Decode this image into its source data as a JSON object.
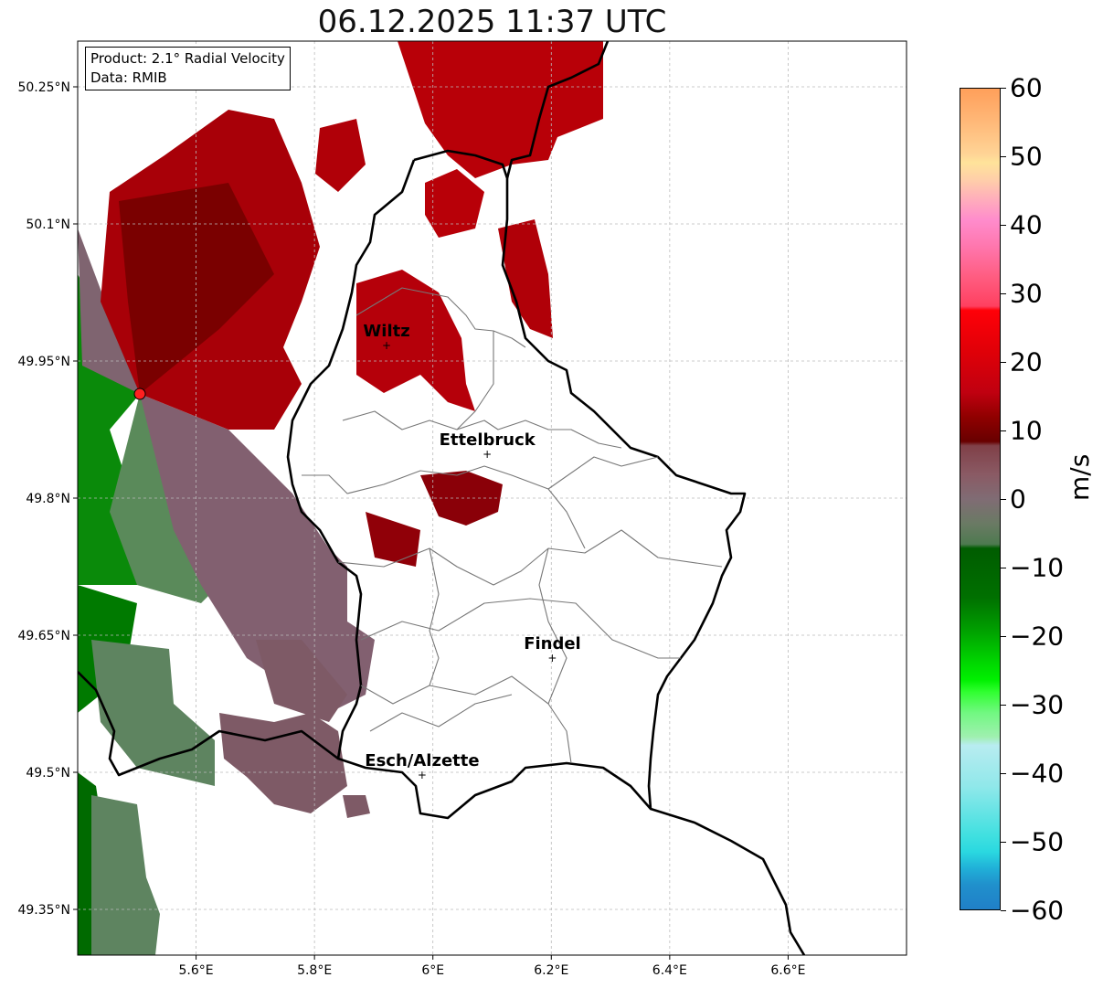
{
  "title": "06.12.2025 11:37 UTC",
  "legend": {
    "product": "Product: 2.1° Radial Velocity",
    "data": "Data: RMIB"
  },
  "map": {
    "lon_range": [
      5.4,
      6.8
    ],
    "lat_range": [
      49.3,
      50.3
    ],
    "lon_ticks": [
      {
        "v": 5.6,
        "label": "5.6°E"
      },
      {
        "v": 5.8,
        "label": "5.8°E"
      },
      {
        "v": 6.0,
        "label": "6°E"
      },
      {
        "v": 6.2,
        "label": "6.2°E"
      },
      {
        "v": 6.4,
        "label": "6.4°E"
      },
      {
        "v": 6.6,
        "label": "6.6°E"
      }
    ],
    "lat_ticks": [
      {
        "v": 50.25,
        "label": "50.25°N"
      },
      {
        "v": 50.1,
        "label": "50.1°N"
      },
      {
        "v": 49.95,
        "label": "49.95°N"
      },
      {
        "v": 49.8,
        "label": "49.8°N"
      },
      {
        "v": 49.65,
        "label": "49.65°N"
      },
      {
        "v": 49.5,
        "label": "49.5°N"
      },
      {
        "v": 49.35,
        "label": "49.35°N"
      }
    ],
    "cities": [
      {
        "name": "Wiltz",
        "lon": 5.928,
        "lat": 49.967
      },
      {
        "name": "Ettelbruck",
        "lon": 6.098,
        "lat": 49.848
      },
      {
        "name": "Findel",
        "lon": 6.208,
        "lat": 49.625
      },
      {
        "name": "Esch/Alzette",
        "lon": 5.988,
        "lat": 49.497
      }
    ],
    "radar_site": {
      "lon": 5.505,
      "lat": 49.914,
      "color": "#ff2020"
    }
  },
  "colorbar": {
    "label": "m/s",
    "ticks": [
      "60",
      "50",
      "40",
      "30",
      "20",
      "10",
      "0",
      "−10",
      "−20",
      "−30",
      "−40",
      "−50",
      "−60"
    ],
    "range": [
      -60,
      60
    ]
  }
}
